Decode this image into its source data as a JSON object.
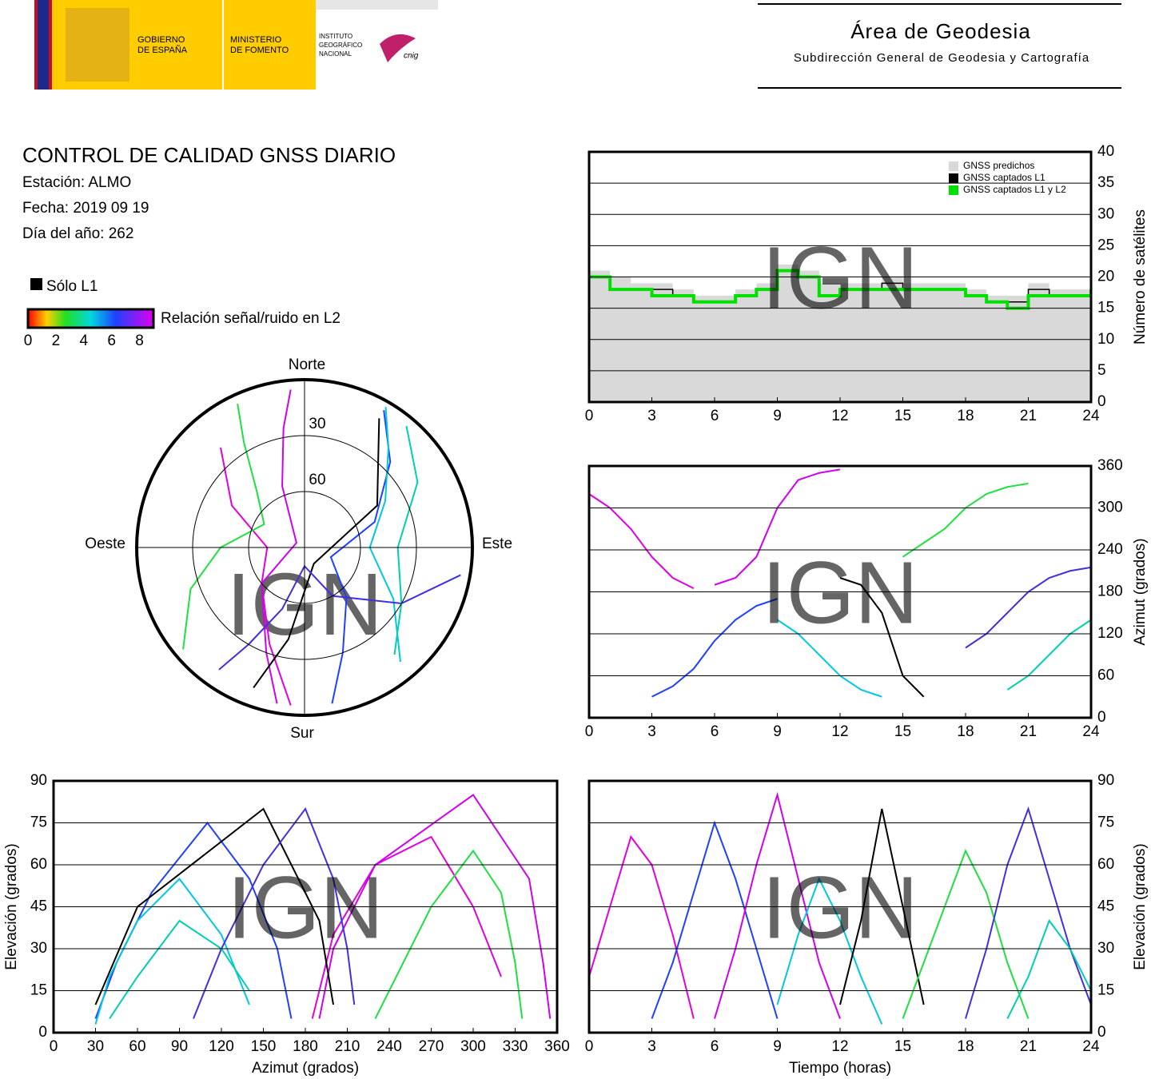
{
  "header": {
    "gobierno": [
      "GOBIERNO",
      "DE ESPAÑA"
    ],
    "ministerio": [
      "MINISTERIO",
      "DE FOMENTO"
    ],
    "instituto": [
      "INSTITUTO",
      "GEOGRÁFICO",
      "NACIONAL"
    ],
    "cnig": "cnig",
    "area": "Área de Geodesia",
    "subdireccion": "Subdirección General de Geodesia y Cartografía"
  },
  "report": {
    "title": "CONTROL DE CALIDAD GNSS DIARIO",
    "station": "Estación: ALMO",
    "date": "Fecha: 2019 09 19",
    "doy": "Día del año: 262"
  },
  "chart_data": [
    {
      "type": "step",
      "watermark": "IGN",
      "ylabel": "Número de satélites",
      "y_axis_side": "right",
      "grid": true,
      "legend": "top-right",
      "x": [
        0,
        1,
        2,
        3,
        4,
        5,
        6,
        7,
        8,
        9,
        10,
        11,
        12,
        13,
        14,
        15,
        16,
        17,
        18,
        19,
        20,
        21,
        22,
        23,
        24
      ],
      "xlim": [
        0,
        24
      ],
      "xticks": [
        0,
        3,
        6,
        9,
        12,
        15,
        18,
        21,
        24
      ],
      "ylim": [
        0,
        40
      ],
      "yticks": [
        0,
        5,
        10,
        15,
        20,
        25,
        30,
        35,
        40
      ],
      "series": [
        {
          "name": "GNSS predichos",
          "color": "#d9d9d9",
          "style": "area",
          "values": [
            21,
            20,
            19,
            19,
            18,
            17,
            17,
            18,
            19,
            22,
            21,
            19,
            19,
            19,
            20,
            19,
            19,
            19,
            18,
            17,
            17,
            19,
            18,
            18,
            19
          ]
        },
        {
          "name": "GNSS captados L1",
          "color": "#000000",
          "style": "step",
          "values": [
            20,
            18,
            18,
            18,
            17,
            16,
            16,
            17,
            18,
            21,
            20,
            17,
            18,
            18,
            19,
            18,
            18,
            18,
            17,
            16,
            16,
            18,
            17,
            17,
            18
          ]
        },
        {
          "name": "GNSS captados L1 y L2",
          "color": "#00e000",
          "style": "step",
          "values": [
            20,
            18,
            18,
            17,
            17,
            16,
            16,
            17,
            18,
            21,
            20,
            17,
            18,
            18,
            18,
            18,
            18,
            18,
            17,
            16,
            15,
            17,
            17,
            17,
            18
          ]
        }
      ]
    },
    {
      "type": "polar",
      "watermark": "IGN",
      "north": "Norte",
      "south": "Sur",
      "east": "Este",
      "west": "Oeste",
      "rings": [
        30,
        60
      ],
      "l1_only": "Sólo L1",
      "colorbar_label": "Relación señal/ruido en L2",
      "colorbar_lim": [
        0,
        9
      ],
      "colorbar_ticks": [
        0,
        2,
        4,
        6,
        8
      ],
      "series": [
        {
          "color": "#e000e0",
          "azimuth": [
            320,
            300,
            270,
            230,
            200,
            185
          ],
          "elevation": [
            20,
            45,
            70,
            60,
            35,
            5
          ]
        },
        {
          "color": "#2040ff",
          "azimuth": [
            30,
            45,
            70,
            110,
            140,
            160,
            170
          ],
          "elevation": [
            5,
            25,
            50,
            75,
            55,
            30,
            5
          ]
        },
        {
          "color": "#d000f0",
          "azimuth": [
            190,
            200,
            230,
            300,
            340,
            350,
            355
          ],
          "elevation": [
            5,
            30,
            60,
            85,
            55,
            25,
            5
          ]
        },
        {
          "color": "#00c8e0",
          "azimuth": [
            140,
            120,
            90,
            60,
            40,
            30
          ],
          "elevation": [
            10,
            35,
            55,
            40,
            20,
            3
          ]
        },
        {
          "color": "#000000",
          "azimuth": [
            200,
            190,
            150,
            60,
            30
          ],
          "elevation": [
            10,
            40,
            80,
            45,
            10
          ]
        },
        {
          "color": "#20e040",
          "azimuth": [
            230,
            250,
            270,
            300,
            320,
            330,
            335
          ],
          "elevation": [
            5,
            25,
            45,
            65,
            50,
            25,
            5
          ]
        },
        {
          "color": "#4030e0",
          "azimuth": [
            100,
            120,
            150,
            180,
            200,
            210,
            215
          ],
          "elevation": [
            5,
            30,
            60,
            80,
            55,
            30,
            10
          ]
        },
        {
          "color": "#00d0b0",
          "azimuth": [
            40,
            60,
            90,
            120,
            140
          ],
          "elevation": [
            5,
            20,
            40,
            30,
            15
          ]
        }
      ]
    },
    {
      "type": "line",
      "watermark": "IGN",
      "ylabel": "Azimut (grados)",
      "y_axis_side": "right",
      "grid": true,
      "xlim": [
        0,
        24
      ],
      "xticks": [
        0,
        3,
        6,
        9,
        12,
        15,
        18,
        21,
        24
      ],
      "ylim": [
        0,
        360
      ],
      "yticks": [
        0,
        60,
        120,
        180,
        240,
        300,
        360
      ],
      "series": [
        {
          "color": "#e000e0",
          "x": [
            0,
            1,
            2,
            3,
            4,
            5
          ],
          "values": [
            320,
            300,
            270,
            230,
            200,
            185
          ]
        },
        {
          "color": "#2040ff",
          "x": [
            3,
            4,
            5,
            6,
            7,
            8,
            9
          ],
          "values": [
            30,
            45,
            70,
            110,
            140,
            160,
            170
          ]
        },
        {
          "color": "#d000f0",
          "x": [
            6,
            7,
            8,
            9,
            10,
            11,
            12
          ],
          "values": [
            190,
            200,
            230,
            300,
            340,
            350,
            355
          ]
        },
        {
          "color": "#00c8e0",
          "x": [
            9,
            10,
            11,
            12,
            13,
            14
          ],
          "values": [
            140,
            120,
            90,
            60,
            40,
            30
          ]
        },
        {
          "color": "#000000",
          "x": [
            12,
            13,
            14,
            15,
            16
          ],
          "values": [
            200,
            190,
            150,
            60,
            30
          ]
        },
        {
          "color": "#20e040",
          "x": [
            15,
            16,
            17,
            18,
            19,
            20,
            21
          ],
          "values": [
            230,
            250,
            270,
            300,
            320,
            330,
            335
          ]
        },
        {
          "color": "#4030e0",
          "x": [
            18,
            19,
            20,
            21,
            22,
            23,
            24
          ],
          "values": [
            100,
            120,
            150,
            180,
            200,
            210,
            215
          ]
        },
        {
          "color": "#00d0b0",
          "x": [
            20,
            21,
            22,
            23,
            24
          ],
          "values": [
            40,
            60,
            90,
            120,
            140
          ]
        }
      ]
    },
    {
      "type": "line",
      "watermark": "IGN",
      "xlabel": "Azimut (grados)",
      "ylabel": "Elevación (grados)",
      "y_axis_side": "left",
      "grid": true,
      "xlim": [
        0,
        360
      ],
      "xticks": [
        0,
        30,
        60,
        90,
        120,
        150,
        180,
        210,
        240,
        270,
        300,
        330,
        360
      ],
      "ylim": [
        0,
        90
      ],
      "yticks": [
        0,
        15,
        30,
        45,
        60,
        75,
        90
      ],
      "series": [
        {
          "color": "#e000e0",
          "x": [
            320,
            300,
            270,
            230,
            200,
            185
          ],
          "values": [
            20,
            45,
            70,
            60,
            35,
            5
          ]
        },
        {
          "color": "#2040ff",
          "x": [
            30,
            45,
            70,
            110,
            140,
            160,
            170
          ],
          "values": [
            5,
            25,
            50,
            75,
            55,
            30,
            5
          ]
        },
        {
          "color": "#d000f0",
          "x": [
            190,
            200,
            230,
            300,
            340,
            350,
            355
          ],
          "values": [
            5,
            30,
            60,
            85,
            55,
            25,
            5
          ]
        },
        {
          "color": "#00c8e0",
          "x": [
            140,
            120,
            90,
            60,
            40,
            30
          ],
          "values": [
            10,
            35,
            55,
            40,
            20,
            3
          ]
        },
        {
          "color": "#000000",
          "x": [
            200,
            190,
            150,
            60,
            30
          ],
          "values": [
            10,
            40,
            80,
            45,
            10
          ]
        },
        {
          "color": "#20e040",
          "x": [
            230,
            250,
            270,
            300,
            320,
            330,
            335
          ],
          "values": [
            5,
            25,
            45,
            65,
            50,
            25,
            5
          ]
        },
        {
          "color": "#4030e0",
          "x": [
            100,
            120,
            150,
            180,
            200,
            210,
            215
          ],
          "values": [
            5,
            30,
            60,
            80,
            55,
            30,
            10
          ]
        },
        {
          "color": "#00d0b0",
          "x": [
            40,
            60,
            90,
            120,
            140
          ],
          "values": [
            5,
            20,
            40,
            30,
            15
          ]
        }
      ]
    },
    {
      "type": "line",
      "watermark": "IGN",
      "xlabel": "Tiempo (horas)",
      "ylabel": "Elevación (grados)",
      "y_axis_side": "right",
      "grid": true,
      "xlim": [
        0,
        24
      ],
      "xticks": [
        0,
        3,
        6,
        9,
        12,
        15,
        18,
        21,
        24
      ],
      "ylim": [
        0,
        90
      ],
      "yticks": [
        0,
        15,
        30,
        45,
        60,
        75,
        90
      ],
      "series": [
        {
          "color": "#e000e0",
          "x": [
            0,
            1,
            2,
            3,
            4,
            5
          ],
          "values": [
            20,
            45,
            70,
            60,
            35,
            5
          ]
        },
        {
          "color": "#2040ff",
          "x": [
            3,
            4,
            5,
            6,
            7,
            8,
            9
          ],
          "values": [
            5,
            25,
            50,
            75,
            55,
            30,
            5
          ]
        },
        {
          "color": "#d000f0",
          "x": [
            6,
            7,
            8,
            9,
            10,
            11,
            12
          ],
          "values": [
            5,
            30,
            60,
            85,
            55,
            25,
            5
          ]
        },
        {
          "color": "#00c8e0",
          "x": [
            9,
            10,
            11,
            12,
            13,
            14
          ],
          "values": [
            10,
            35,
            55,
            40,
            20,
            3
          ]
        },
        {
          "color": "#000000",
          "x": [
            12,
            13,
            14,
            15,
            16
          ],
          "values": [
            10,
            40,
            80,
            45,
            10
          ]
        },
        {
          "color": "#20e040",
          "x": [
            15,
            16,
            17,
            18,
            19,
            20,
            21
          ],
          "values": [
            5,
            25,
            45,
            65,
            50,
            25,
            5
          ]
        },
        {
          "color": "#4030e0",
          "x": [
            18,
            19,
            20,
            21,
            22,
            23,
            24
          ],
          "values": [
            5,
            30,
            60,
            80,
            55,
            30,
            10
          ]
        },
        {
          "color": "#00d0b0",
          "x": [
            20,
            21,
            22,
            23,
            24
          ],
          "values": [
            5,
            20,
            40,
            30,
            15
          ]
        }
      ]
    }
  ]
}
